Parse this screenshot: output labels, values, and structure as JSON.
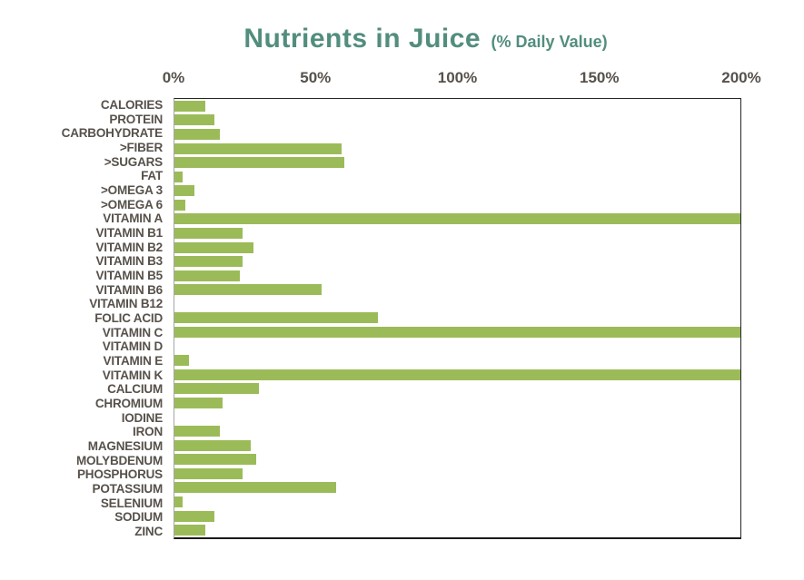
{
  "title": {
    "main": "Nutrients in Juice",
    "suffix": "(% Daily Value)"
  },
  "colors": {
    "bar": "#9BBB59",
    "title": "#528D7E",
    "text": "#57514B",
    "plot_border": "#262626",
    "axis_line": "#A6A6A6"
  },
  "chart_data": {
    "type": "bar",
    "orientation": "horizontal",
    "title": "Nutrients in Juice (% Daily Value)",
    "xlabel": "% Daily Value",
    "ylabel": "",
    "xlim": [
      0,
      200
    ],
    "x_tick_labels": [
      "0%",
      "50%",
      "100%",
      "150%",
      "200%"
    ],
    "x_tick_values": [
      0,
      50,
      100,
      150,
      200
    ],
    "grid": false,
    "legend": false,
    "bar_color": "#9BBB59",
    "categories": [
      "CALORIES",
      "PROTEIN",
      "CARBOHYDRATE",
      ">FIBER",
      ">SUGARS",
      "FAT",
      ">OMEGA 3",
      ">OMEGA 6",
      "VITAMIN A",
      "VITAMIN B1",
      "VITAMIN B2",
      "VITAMIN B3",
      "VITAMIN B5",
      "VITAMIN B6",
      "VITAMIN B12",
      "FOLIC ACID",
      "VITAMIN C",
      "VITAMIN D",
      "VITAMIN E",
      "VITAMIN K",
      "CALCIUM",
      "CHROMIUM",
      "IODINE",
      "IRON",
      "MAGNESIUM",
      "MOLYBDENUM",
      "PHOSPHORUS",
      "POTASSIUM",
      "SELENIUM",
      "SODIUM",
      "ZINC"
    ],
    "values": [
      11,
      14,
      16,
      59,
      60,
      3,
      7,
      4,
      200,
      24,
      28,
      24,
      23,
      52,
      0,
      72,
      200,
      0,
      5,
      200,
      30,
      17,
      0,
      16,
      27,
      29,
      24,
      57,
      3,
      14,
      11
    ]
  }
}
